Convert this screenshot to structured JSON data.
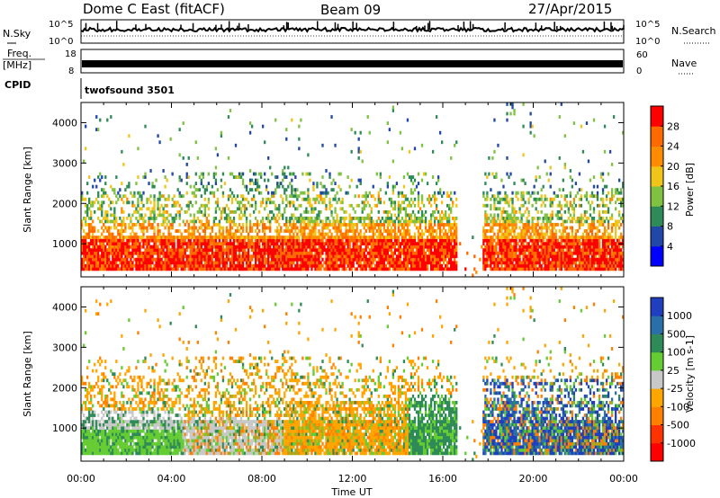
{
  "header": {
    "station": "Dome C East (fitACF)",
    "beam": "Beam 09",
    "date": "27/Apr/2015"
  },
  "strips": {
    "nsky": {
      "label": "N.Sky",
      "ticks": [
        "10^5",
        "10^0"
      ]
    },
    "nsearch": {
      "label": "N.Search",
      "ticks": [
        "10^5",
        "10^0"
      ]
    },
    "freq": {
      "label_line1": "Freq.",
      "label_line2": "[MHz]",
      "ticks": [
        "18",
        "8"
      ]
    },
    "nave": {
      "label": "Nave",
      "ticks": [
        "60",
        "0"
      ]
    },
    "cpid": {
      "label": "CPID",
      "value": "twofsound 3501"
    }
  },
  "chart_data": [
    {
      "type": "heatmap",
      "name": "power",
      "xlabel": "Time UT",
      "ylabel": "Slant Range [km]",
      "x_ticks": [
        "00:00",
        "04:00",
        "08:00",
        "12:00",
        "16:00",
        "20:00",
        "00:00"
      ],
      "x_range_hours": [
        0,
        24
      ],
      "y_ticks": [
        1000,
        2000,
        3000,
        4000
      ],
      "y_range_km": [
        180,
        4500
      ],
      "colorbar": {
        "label": "Power [dB]",
        "ticks": [
          4,
          8,
          12,
          16,
          20,
          24,
          28
        ],
        "range": [
          0,
          32
        ],
        "colors": [
          "#0000ff",
          "#2147a8",
          "#2e8b57",
          "#7fc241",
          "#f0c419",
          "#ff8c00",
          "#ff6a00",
          "#ff0000"
        ]
      }
    },
    {
      "type": "heatmap",
      "name": "velocity",
      "xlabel": "Time UT",
      "ylabel": "Slant Range [km]",
      "x_ticks": [
        "00:00",
        "04:00",
        "08:00",
        "12:00",
        "16:00",
        "20:00",
        "00:00"
      ],
      "x_range_hours": [
        0,
        24
      ],
      "y_ticks": [
        1000,
        2000,
        3000,
        4000
      ],
      "y_range_km": [
        180,
        4500
      ],
      "colorbar": {
        "label": "Velocity [m s-1]",
        "ticks": [
          "1000",
          "500",
          "100",
          "25",
          "-25",
          "-100",
          "-500",
          "-1000"
        ],
        "colors": [
          "#1f3fbf",
          "#2b6fa8",
          "#2e8b57",
          "#66cc33",
          "#c8c8c8",
          "#ffa500",
          "#ff7f00",
          "#ff3300",
          "#ff0000"
        ]
      }
    }
  ]
}
